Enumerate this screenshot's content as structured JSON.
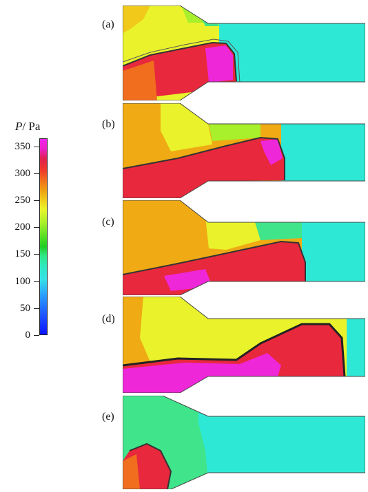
{
  "colorbar": {
    "symbol": "P",
    "unit": "/ Pa",
    "ticks": [
      "0",
      "50",
      "100",
      "150",
      "200",
      "250",
      "300",
      "350"
    ]
  },
  "panels": [
    {
      "label": "(a)"
    },
    {
      "label": "(b)"
    },
    {
      "label": "(c)"
    },
    {
      "label": "(d)"
    },
    {
      "label": "(e)"
    }
  ],
  "colors": {
    "cyan": "#2ee8d6",
    "green": "#3fe48b",
    "yellow": "#e9f22b",
    "orange": "#efaa14",
    "red": "#e8283c",
    "magenta": "#ee27d8"
  }
}
